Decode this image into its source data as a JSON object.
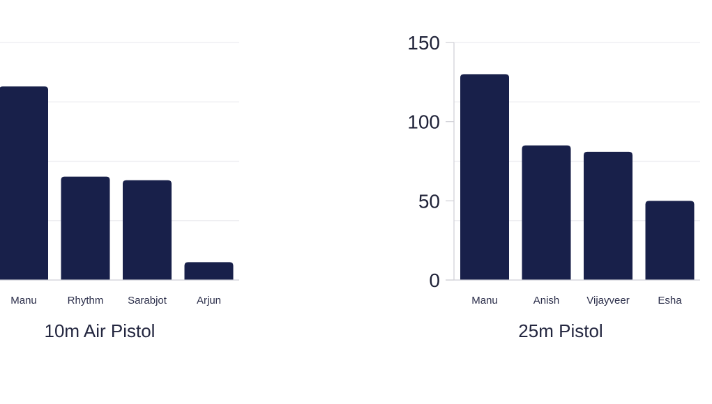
{
  "chart_data": [
    {
      "type": "bar",
      "title": "10m Air Pistol",
      "categories": [
        "Manu",
        "Rhythm",
        "Sarabjot",
        "Arjun"
      ],
      "values": [
        163,
        87,
        84,
        15
      ],
      "ylim": [
        0,
        200
      ],
      "yticks": [],
      "grid": true,
      "bar_color": "#18204a"
    },
    {
      "type": "bar",
      "title": "25m Pistol",
      "categories": [
        "Manu",
        "Anish",
        "Vijayveer",
        "Esha"
      ],
      "values": [
        130,
        85,
        81,
        50
      ],
      "ylim": [
        0,
        150
      ],
      "yticks": [
        "0",
        "50",
        "100",
        "150"
      ],
      "grid": true,
      "bar_color": "#18204a"
    }
  ]
}
